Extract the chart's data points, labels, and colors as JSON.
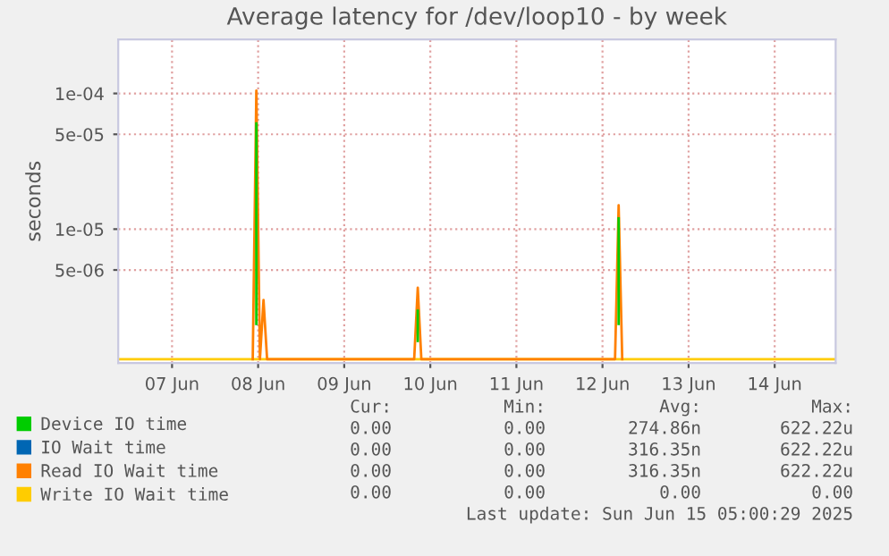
{
  "chart_data": {
    "type": "line",
    "title": "Average latency for /dev/loop10 - by week",
    "ylabel": "seconds",
    "log": "y",
    "ylim": [
      1.03e-06,
      0.00025
    ],
    "yticks": [
      {
        "value": 5e-06,
        "label": "5e-06"
      },
      {
        "value": 1e-05,
        "label": "1e-05"
      },
      {
        "value": 5e-05,
        "label": "5e-05"
      },
      {
        "value": 0.0001,
        "label": "1e-04"
      }
    ],
    "xlim": [
      "2025-06-06T21:00",
      "2025-06-15T05:00"
    ],
    "xticks": [
      {
        "value": "2025-06-07T12:00",
        "label": "07 Jun"
      },
      {
        "value": "2025-06-08T12:00",
        "label": "08 Jun"
      },
      {
        "value": "2025-06-09T12:00",
        "label": "09 Jun"
      },
      {
        "value": "2025-06-10T12:00",
        "label": "10 Jun"
      },
      {
        "value": "2025-06-11T12:00",
        "label": "11 Jun"
      },
      {
        "value": "2025-06-12T12:00",
        "label": "12 Jun"
      },
      {
        "value": "2025-06-13T12:00",
        "label": "13 Jun"
      },
      {
        "value": "2025-06-14T12:00",
        "label": "14 Jun"
      }
    ],
    "x": [
      "2025-06-06T21:00",
      "2025-06-08T11:00",
      "2025-06-08T11:30",
      "2025-06-08T12:00",
      "2025-06-08T13:00",
      "2025-06-08T13:30",
      "2025-06-08T14:00",
      "2025-06-10T08:00",
      "2025-06-10T08:30",
      "2025-06-10T09:00",
      "2025-06-12T16:00",
      "2025-06-12T16:30",
      "2025-06-12T17:00",
      "2025-06-15T05:00"
    ],
    "series": [
      {
        "name": "Device IO time",
        "color": "#00cc00",
        "x": [
          "2025-06-08T11:30",
          "2025-06-08T11:30",
          "2025-06-08T12:00",
          "2025-06-10T08:30",
          "2025-06-10T08:30",
          "2025-06-10T09:00",
          "2025-06-12T16:30",
          "2025-06-12T16:30"
        ],
        "values": [
          6e-05,
          2e-06,
          null,
          2.5e-06,
          1.5e-06,
          null,
          1.2e-05,
          2e-06
        ]
      },
      {
        "name": "IO Wait time",
        "color": "#0066b3",
        "values": [
          null,
          null,
          null,
          null,
          null,
          null,
          null,
          null,
          null,
          null,
          null,
          null,
          null,
          null
        ]
      },
      {
        "name": "Read IO Wait time",
        "color": "#ff8000",
        "x": [
          "2025-06-08T10:30",
          "2025-06-08T11:30",
          "2025-06-08T12:30",
          "2025-06-08T13:30",
          "2025-06-08T14:30",
          "2025-06-10T07:30",
          "2025-06-10T08:30",
          "2025-06-10T09:30",
          "2025-06-12T15:30",
          "2025-06-12T16:30",
          "2025-06-12T17:30"
        ],
        "values": [
          1.1e-06,
          0.000105,
          1.1e-06,
          3e-06,
          1.1e-06,
          1.1e-06,
          3.7e-06,
          1.1e-06,
          1.1e-06,
          1.5e-05,
          1.1e-06
        ]
      },
      {
        "name": "Write IO Wait time",
        "color": "#ffcc00",
        "values": [
          1.1e-06,
          1.1e-06,
          1.1e-06,
          1.1e-06,
          1.1e-06,
          1.1e-06,
          1.1e-06,
          1.1e-06,
          1.1e-06,
          1.1e-06,
          1.1e-06,
          1.1e-06,
          1.1e-06,
          1.1e-06
        ]
      }
    ],
    "grid": true,
    "legend": "bottom left",
    "line_style": "solid",
    "marker": "none",
    "annotations": [
      "Cur:",
      "Min:",
      "Avg:",
      "Max:",
      "0.00",
      "0.00",
      "274.86n",
      "622.22u",
      "0.00",
      "0.00",
      "316.35n",
      "622.22u",
      "0.00",
      "0.00",
      "316.35n",
      "622.22u",
      "0.00",
      "0.00",
      "0.00",
      "0.00",
      "Last update: Sun Jun 15 05:00:29 2025"
    ]
  }
}
